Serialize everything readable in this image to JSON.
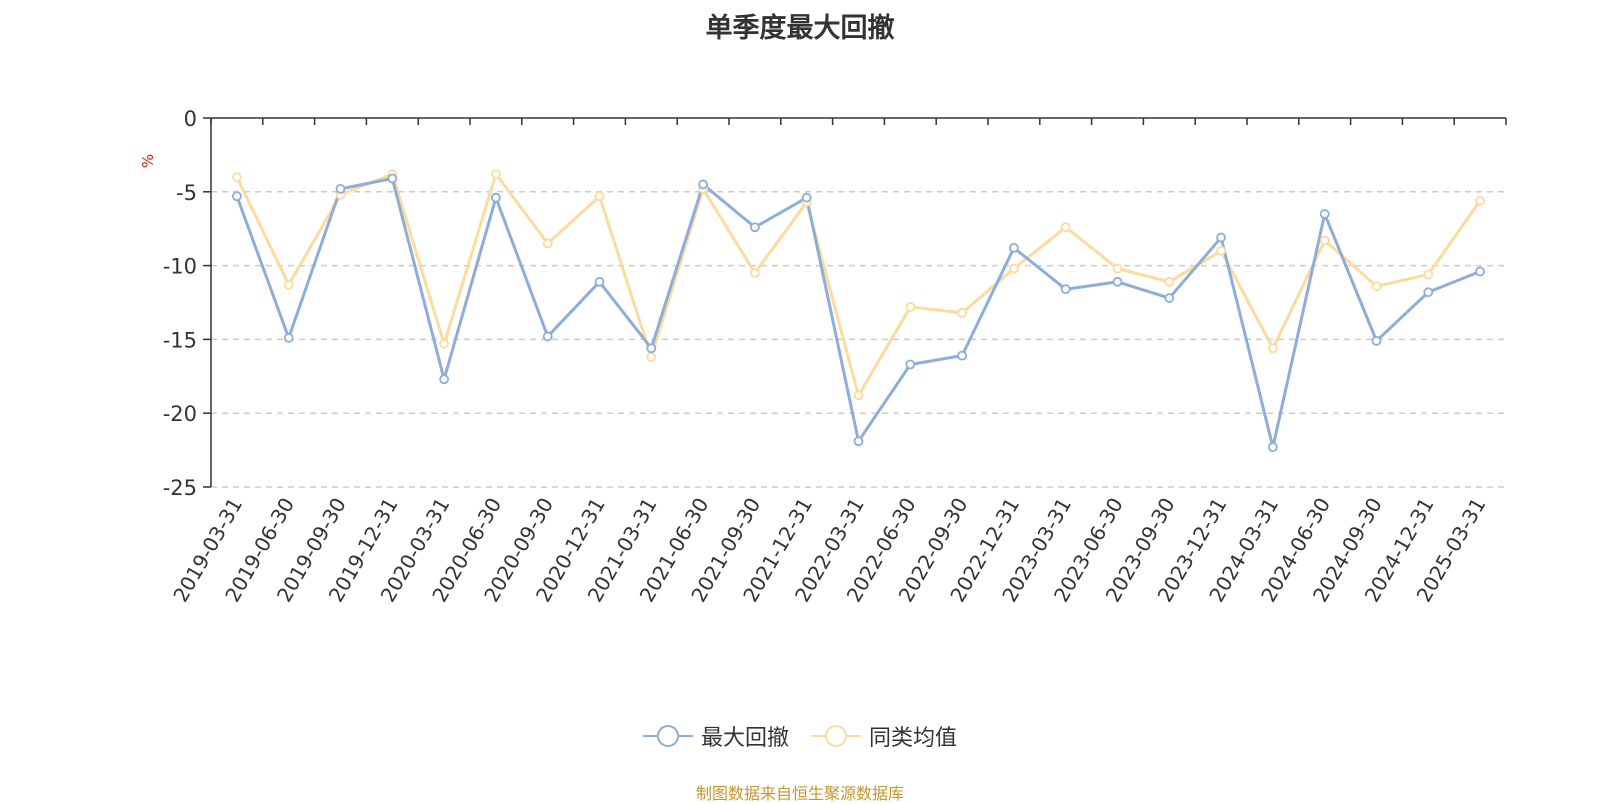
{
  "chart_data": {
    "type": "line",
    "title": "单季度最大回撤",
    "ylabel": "%",
    "ylim": [
      -25,
      0
    ],
    "yticks": [
      "0",
      "-5",
      "-10",
      "-15",
      "-20",
      "-25"
    ],
    "grid": true,
    "legend_position": "bottom",
    "categories": [
      "2019-03-31",
      "2019-06-30",
      "2019-09-30",
      "2019-12-31",
      "2020-03-31",
      "2020-06-30",
      "2020-09-30",
      "2020-12-31",
      "2021-03-31",
      "2021-06-30",
      "2021-09-30",
      "2021-12-31",
      "2022-03-31",
      "2022-06-30",
      "2022-09-30",
      "2022-12-31",
      "2023-03-31",
      "2023-06-30",
      "2023-09-30",
      "2023-12-31",
      "2024-03-31",
      "2024-06-30",
      "2024-09-30",
      "2024-12-31",
      "2025-03-31"
    ],
    "series": [
      {
        "name": "最大回撤",
        "color": "#8eadd9",
        "values": [
          -5.3,
          -14.9,
          -4.8,
          -4.1,
          -17.7,
          -5.4,
          -14.8,
          -11.1,
          -15.6,
          -4.5,
          -7.4,
          -5.4,
          -21.9,
          -16.7,
          -16.1,
          -8.8,
          -11.6,
          -11.1,
          -12.2,
          -8.1,
          -22.3,
          -6.5,
          -15.1,
          -11.8,
          -10.4
        ]
      },
      {
        "name": "同类均值",
        "color": "#fcdc9e",
        "values": [
          -4.0,
          -11.3,
          -5.2,
          -3.8,
          -15.3,
          -3.8,
          -8.5,
          -5.3,
          -16.2,
          -4.8,
          -10.5,
          -5.7,
          -18.8,
          -12.8,
          -13.2,
          -10.2,
          -7.4,
          -10.2,
          -11.1,
          -9.0,
          -15.6,
          -8.3,
          -11.4,
          -10.6,
          -5.6
        ]
      }
    ]
  },
  "source_note": "制图数据来自恒生聚源数据库"
}
